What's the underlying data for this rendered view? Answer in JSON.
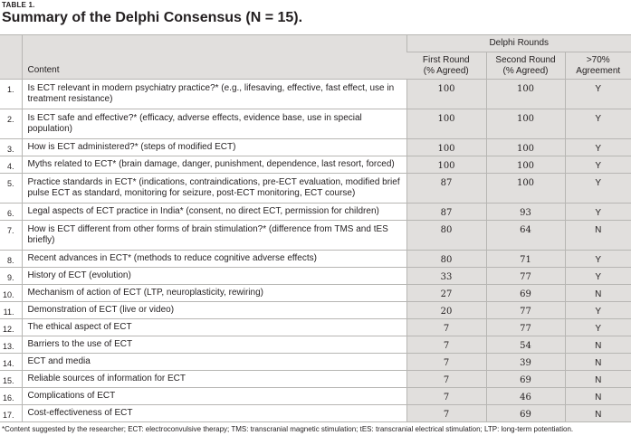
{
  "table_label": "TABLE 1.",
  "title": "Summary of the Delphi Consensus (N = 15).",
  "headers": {
    "content": "Content",
    "rounds": "Delphi Rounds",
    "first_round": "First Round",
    "first_round_sub": "(% Agreed)",
    "second_round": "Second Round",
    "second_round_sub": "(% Agreed)",
    "agreement": ">70%",
    "agreement_sub": "Agreement"
  },
  "rows": [
    {
      "num": "1.",
      "content": "Is ECT relevant in modern psychiatry practice?* (e.g., lifesaving, effective, fast effect, use in treatment resistance)",
      "r1": "100",
      "r2": "100",
      "agree": "Y"
    },
    {
      "num": "2.",
      "content": "Is ECT safe and effective?* (efficacy, adverse effects, evidence base, use in special population)",
      "r1": "100",
      "r2": "100",
      "agree": "Y"
    },
    {
      "num": "3.",
      "content": "How is ECT administered?* (steps of modified ECT)",
      "r1": "100",
      "r2": "100",
      "agree": "Y"
    },
    {
      "num": "4.",
      "content": "Myths related to ECT* (brain damage, danger, punishment, dependence, last resort, forced)",
      "r1": "100",
      "r2": "100",
      "agree": "Y"
    },
    {
      "num": "5.",
      "content": "Practice standards in ECT* (indications, contraindications, pre-ECT evaluation, modified brief pulse ECT as standard, monitoring for seizure, post-ECT monitoring, ECT course)",
      "r1": "87",
      "r2": "100",
      "agree": "Y"
    },
    {
      "num": "6.",
      "content": "Legal aspects of ECT practice in India* (consent, no direct ECT, permission for children)",
      "r1": "87",
      "r2": "93",
      "agree": "Y"
    },
    {
      "num": "7.",
      "content": "How is ECT different from other forms of brain stimulation?* (difference from TMS and tES briefly)",
      "r1": "80",
      "r2": "64",
      "agree": "N"
    },
    {
      "num": "8.",
      "content": "Recent advances in ECT* (methods to reduce cognitive adverse effects)",
      "r1": "80",
      "r2": "71",
      "agree": "Y"
    },
    {
      "num": "9.",
      "content": "History of ECT (evolution)",
      "r1": "33",
      "r2": "77",
      "agree": "Y"
    },
    {
      "num": "10.",
      "content": "Mechanism of action of ECT (LTP, neuroplasticity, rewiring)",
      "r1": "27",
      "r2": "69",
      "agree": "N"
    },
    {
      "num": "11.",
      "content": "Demonstration of ECT (live or video)",
      "r1": "20",
      "r2": "77",
      "agree": "Y"
    },
    {
      "num": "12.",
      "content": "The ethical aspect of ECT",
      "r1": "7",
      "r2": "77",
      "agree": "Y"
    },
    {
      "num": "13.",
      "content": "Barriers to the use of ECT",
      "r1": "7",
      "r2": "54",
      "agree": "N"
    },
    {
      "num": "14.",
      "content": "ECT and media",
      "r1": "7",
      "r2": "39",
      "agree": "N"
    },
    {
      "num": "15.",
      "content": "Reliable sources of information for ECT",
      "r1": "7",
      "r2": "69",
      "agree": "N"
    },
    {
      "num": "16.",
      "content": "Complications of ECT",
      "r1": "7",
      "r2": "46",
      "agree": "N"
    },
    {
      "num": "17.",
      "content": "Cost-effectiveness of ECT",
      "r1": "7",
      "r2": "69",
      "agree": "N"
    }
  ],
  "footnote": "*Content suggested by the researcher; ECT: electroconvulsive therapy; TMS: transcranial magnetic stimulation; tES: transcranial electrical stimulation; LTP: long-term potentiation."
}
